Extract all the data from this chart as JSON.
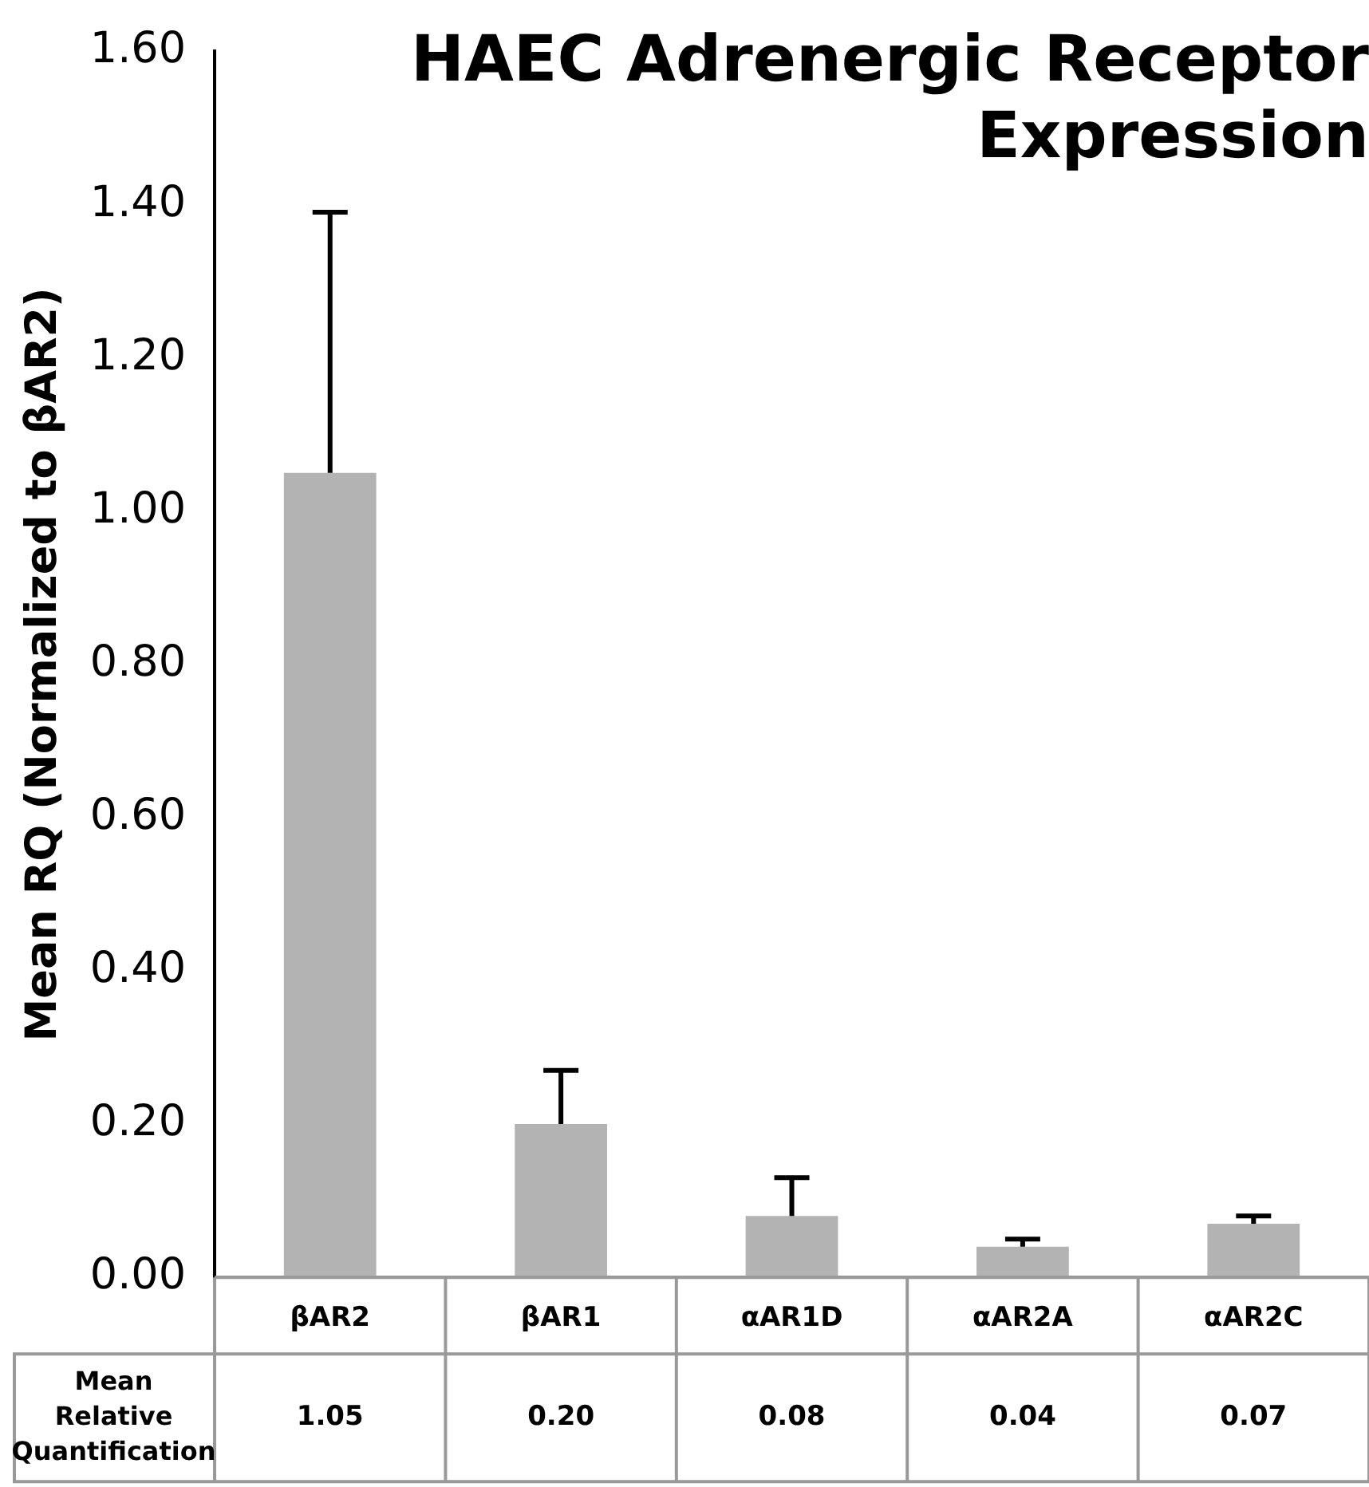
{
  "chart_data": {
    "type": "bar",
    "title": "HAEC Adrenergic Receptor Expression",
    "ylabel": "Mean RQ (Normalized to βAR2)",
    "categories": [
      "βAR2",
      "βAR1",
      "αAR1D",
      "αAR2A",
      "αAR2C"
    ],
    "values": [
      1.05,
      0.2,
      0.08,
      0.04,
      0.07
    ],
    "color": "#b3b3b3",
    "errors": [
      [
        1.05,
        1.39
      ],
      [
        0.2,
        0.27
      ],
      [
        0.08,
        0.13
      ],
      [
        0.04,
        0.05
      ],
      [
        0.07,
        0.08
      ]
    ],
    "value_labels": [
      "1.05",
      "0.20",
      "0.08",
      "0.04",
      "0.07"
    ],
    "annotations": [
      "Mean Relative Quantification"
    ],
    "ylim": [
      0,
      1.6
    ],
    "yticks": [
      {
        "value": 0,
        "label": "0.00"
      },
      {
        "value": 0.2,
        "label": "0.20"
      },
      {
        "value": 0.4,
        "label": "0.40"
      },
      {
        "value": 0.6,
        "label": "0.60"
      },
      {
        "value": 0.8,
        "label": "0.80"
      },
      {
        "value": 1.0,
        "label": "1.00"
      },
      {
        "value": 1.2,
        "label": "1.20"
      },
      {
        "value": 1.4,
        "label": "1.40"
      },
      {
        "value": 1.6,
        "label": "1.60"
      }
    ],
    "grid": false,
    "legend": false
  }
}
